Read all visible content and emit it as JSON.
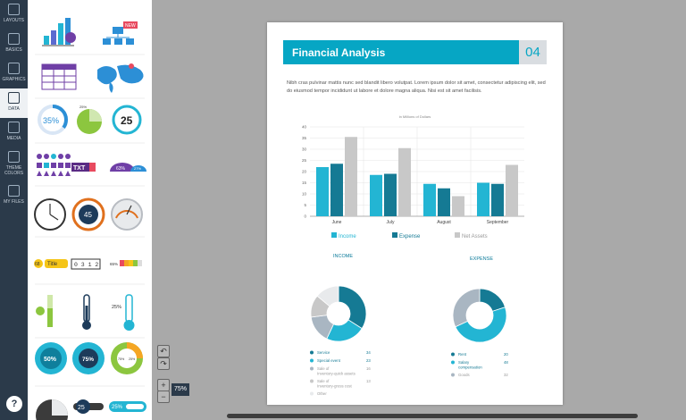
{
  "sidebar": {
    "items": [
      {
        "label": "LAYOUTS",
        "icon": "layout-icon"
      },
      {
        "label": "BASICS",
        "icon": "text-icon"
      },
      {
        "label": "GRAPHICS",
        "icon": "image-icon"
      },
      {
        "label": "DATA",
        "icon": "chart-icon"
      },
      {
        "label": "MEDIA",
        "icon": "play-icon"
      },
      {
        "label": "THEME COLORS",
        "icon": "palette-icon"
      },
      {
        "label": "MY FILES",
        "icon": "cloud-icon"
      }
    ],
    "active": "DATA",
    "help_label": "?"
  },
  "panel": {
    "thumbs": [
      {
        "new_badge": "NEW"
      },
      {
        "pct1": "35%",
        "pct2": "25%",
        "counter": "25"
      },
      {
        "badge_txt": "TXT",
        "badge_63": "63%",
        "badge_27": "27%"
      },
      {
        "clock_val": "45"
      },
      {
        "tag_68": "68",
        "tag_title": "Title",
        "counter_digits": "0 3 1 2",
        "level_label": "65%"
      },
      {
        "thermo_val": "25%"
      },
      {
        "ring_50": "50%",
        "ring_75": "75%",
        "ring_split": "75%",
        "ring_split2": "25%"
      },
      {
        "bottom_25": "25",
        "bottom_pct": "25%"
      }
    ]
  },
  "canvas": {
    "zoom": "75%",
    "undo_icon": "undo-icon",
    "redo_icon": "redo-icon",
    "zoom_in": "+",
    "zoom_out": "−"
  },
  "page": {
    "title": "Financial Analysis",
    "number": "04",
    "intro": "Nibh cras pulvinar mattis nunc sed blandit libero volutpat. Lorem ipsum dolor sit amet, consectetur adipiscing elit, sed do eiusmod tempor incididunt ut labore et dolore magna aliqua. Nisi est sit amet facilisis.",
    "colors": {
      "income": "#23b5d3",
      "expense": "#157a94",
      "assets": "#c8c8c8"
    }
  },
  "chart_data": [
    {
      "type": "bar",
      "title": "in Millions of Dollars",
      "categories": [
        "June",
        "July",
        "August",
        "September"
      ],
      "series": [
        {
          "name": "Income",
          "values": [
            22,
            18.5,
            14.5,
            15
          ]
        },
        {
          "name": "Expense",
          "values": [
            23.5,
            19,
            12.5,
            14.5
          ]
        },
        {
          "name": "Net Assets",
          "values": [
            35.5,
            30.5,
            9,
            23
          ]
        }
      ],
      "ylim": [
        0,
        40
      ],
      "yticks": [
        "0",
        "5",
        "10",
        "15",
        "20",
        "25",
        "30",
        "35",
        "40"
      ],
      "legend": "bottom",
      "grid": true
    },
    {
      "type": "pie",
      "title": "INCOME",
      "labels": [
        "Service",
        "Special event",
        "Sale of Inventory-quick assets",
        "Sale of Inventory-gross cost",
        "Other"
      ],
      "values": [
        34,
        23,
        16,
        13,
        14
      ],
      "display_values": [
        "34",
        "23",
        "16",
        "13",
        ""
      ],
      "colors": [
        "#157a94",
        "#23b5d3",
        "#a9b6c2",
        "#c8c8c8",
        "#e8eaec"
      ]
    },
    {
      "type": "pie",
      "title": "EXPENSE",
      "labels": [
        "Rent",
        "Salary compensation",
        "Goods"
      ],
      "values": [
        20,
        48,
        32
      ],
      "display_values": [
        "20",
        "48",
        "32"
      ],
      "colors": [
        "#157a94",
        "#23b5d3",
        "#a9b6c2"
      ]
    }
  ]
}
